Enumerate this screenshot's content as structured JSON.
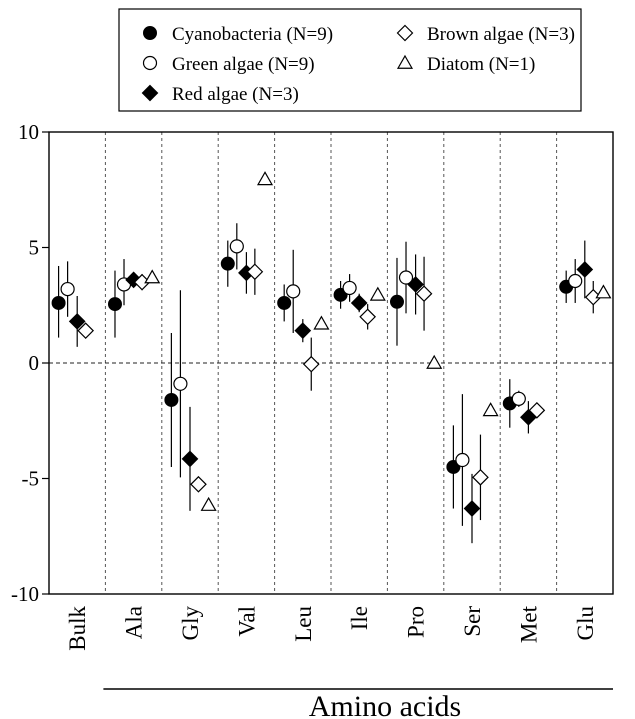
{
  "chart_data": {
    "type": "scatter",
    "title": "",
    "xlabel": "Amino acids",
    "ylabel": "",
    "ylim": [
      -10,
      10
    ],
    "yticks": [
      10,
      5,
      0,
      -5,
      -10
    ],
    "categories": [
      "Bulk",
      "Ala",
      "Gly",
      "Val",
      "Leu",
      "Ile",
      "Pro",
      "Ser",
      "Met",
      "Glu"
    ],
    "reference_line_y": 0,
    "grid": "vertical dashed separators between categories",
    "legend_position": "top",
    "series": [
      {
        "name": "Cyanobacteria (N=9)",
        "marker": "filled-circle",
        "values": [
          2.6,
          2.55,
          -1.6,
          4.3,
          2.6,
          2.95,
          2.65,
          -4.5,
          -1.75,
          3.3
        ],
        "err_low": [
          1.5,
          1.45,
          2.9,
          1.0,
          0.8,
          0.6,
          1.9,
          1.8,
          1.05,
          0.7
        ],
        "err_high": [
          1.6,
          1.45,
          2.9,
          1.0,
          0.8,
          0.6,
          1.9,
          1.8,
          1.05,
          0.7
        ]
      },
      {
        "name": "Green algae (N=9)",
        "marker": "open-circle",
        "values": [
          3.2,
          3.4,
          -0.9,
          5.05,
          3.1,
          3.25,
          3.7,
          -4.2,
          -1.55,
          3.55
        ],
        "err_low": [
          1.2,
          0.9,
          4.05,
          1.0,
          1.8,
          0.6,
          1.55,
          2.85,
          0.35,
          0.95
        ],
        "err_high": [
          1.2,
          1.1,
          4.05,
          1.0,
          1.8,
          0.6,
          1.55,
          2.85,
          0.35,
          0.95
        ]
      },
      {
        "name": "Red algae (N=3)",
        "marker": "filled-diamond",
        "values": [
          1.8,
          3.6,
          -4.15,
          3.9,
          1.4,
          2.6,
          3.4,
          -6.3,
          -2.35,
          4.05
        ],
        "err_low": [
          1.1,
          0.3,
          2.25,
          0.9,
          0.5,
          0.4,
          1.3,
          1.5,
          0.7,
          1.25
        ],
        "err_high": [
          1.1,
          0.3,
          2.25,
          0.9,
          0.5,
          0.4,
          1.3,
          1.5,
          0.7,
          1.25
        ]
      },
      {
        "name": "Brown algae (N=3)",
        "marker": "open-diamond",
        "values": [
          1.4,
          3.5,
          -5.25,
          3.95,
          -0.05,
          2.0,
          3.0,
          -4.95,
          -2.05,
          2.85
        ],
        "err_low": [
          0.3,
          0.35,
          0.3,
          1.0,
          1.15,
          0.55,
          1.6,
          1.85,
          0.2,
          0.7
        ],
        "err_high": [
          0.3,
          0.35,
          0.3,
          1.0,
          1.15,
          0.55,
          1.6,
          1.85,
          0.2,
          0.7
        ]
      },
      {
        "name": "Diatom (N=1)",
        "marker": "open-triangle",
        "values": [
          null,
          3.7,
          -6.15,
          7.95,
          1.7,
          2.95,
          0.0,
          -2.05,
          null,
          3.05
        ],
        "err_low": [
          null,
          null,
          null,
          null,
          null,
          null,
          null,
          null,
          null,
          null
        ],
        "err_high": [
          null,
          null,
          null,
          null,
          null,
          null,
          null,
          null,
          null,
          null
        ]
      }
    ]
  }
}
